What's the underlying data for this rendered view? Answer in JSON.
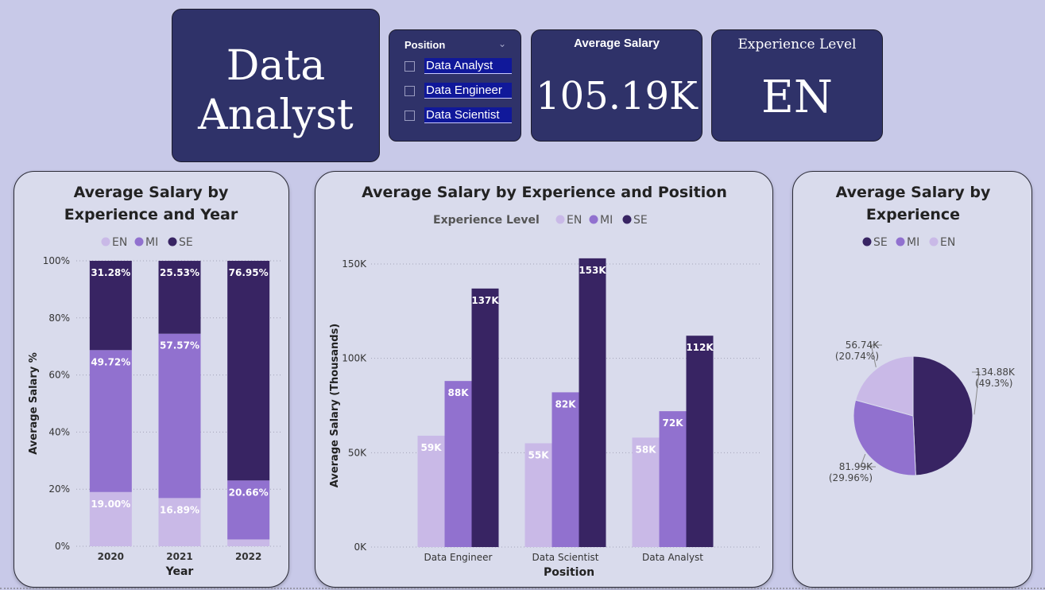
{
  "title_card": {
    "title": "Data\nAnalyst"
  },
  "slicer": {
    "header": "Position",
    "options": [
      "Data Analyst",
      "Data Engineer",
      "Data Scientist"
    ]
  },
  "kpis": {
    "salary_label": "Average Salary",
    "salary_value": "105.19K",
    "level_label": "Experience Level",
    "level_value": "EN"
  },
  "colors": {
    "EN": "#c9b9e7",
    "MI": "#9171cf",
    "SE": "#382463"
  },
  "chart_data": [
    {
      "type": "bar",
      "stacked": "percent",
      "title": "Average Salary by Experience and Year",
      "legend": [
        "EN",
        "MI",
        "SE"
      ],
      "legend_position": "top-center",
      "categories": [
        "2020",
        "2021",
        "2022"
      ],
      "series": [
        {
          "name": "EN",
          "values": [
            19.0,
            16.89,
            2.39
          ],
          "labels": [
            "19.00%",
            "16.89%",
            ""
          ]
        },
        {
          "name": "MI",
          "values": [
            49.72,
            57.57,
            20.66
          ],
          "labels": [
            "49.72%",
            "57.57%",
            "20.66%"
          ]
        },
        {
          "name": "SE",
          "values": [
            31.28,
            25.53,
            76.95
          ],
          "labels": [
            "31.28%",
            "25.53%",
            "76.95%"
          ]
        }
      ],
      "xlabel": "Year",
      "ylabel": "Average Salary %",
      "ylim": [
        0,
        100
      ],
      "yticks": [
        "0%",
        "20%",
        "40%",
        "60%",
        "80%",
        "100%"
      ],
      "grid": true
    },
    {
      "type": "bar",
      "title": "Average Salary by Experience and Position",
      "legend_title": "Experience Level",
      "legend": [
        "EN",
        "MI",
        "SE"
      ],
      "legend_position": "top-center",
      "categories": [
        "Data Engineer",
        "Data Scientist",
        "Data Analyst"
      ],
      "series": [
        {
          "name": "EN",
          "values": [
            59,
            55,
            58
          ],
          "labels": [
            "59K",
            "55K",
            "58K"
          ]
        },
        {
          "name": "MI",
          "values": [
            88,
            82,
            72
          ],
          "labels": [
            "88K",
            "82K",
            "72K"
          ]
        },
        {
          "name": "SE",
          "values": [
            137,
            153,
            112
          ],
          "labels": [
            "137K",
            "153K",
            "112K"
          ]
        }
      ],
      "xlabel": "Position",
      "ylabel": "Average Salary (Thousands)",
      "ylim": [
        0,
        150
      ],
      "yticks": [
        "0K",
        "50K",
        "100K",
        "150K"
      ],
      "grid": true
    },
    {
      "type": "pie",
      "title": "Average Salary by Experience",
      "legend": [
        "SE",
        "MI",
        "EN"
      ],
      "legend_position": "top-center",
      "slices": [
        {
          "name": "SE",
          "value": 134.88,
          "percent": 49.3,
          "label": "134.88K",
          "sub": "(49.3%)"
        },
        {
          "name": "MI",
          "value": 81.99,
          "percent": 29.96,
          "label": "81.99K",
          "sub": "(29.96%)"
        },
        {
          "name": "EN",
          "value": 56.74,
          "percent": 20.74,
          "label": "56.74K",
          "sub": "(20.74%)"
        }
      ]
    }
  ]
}
